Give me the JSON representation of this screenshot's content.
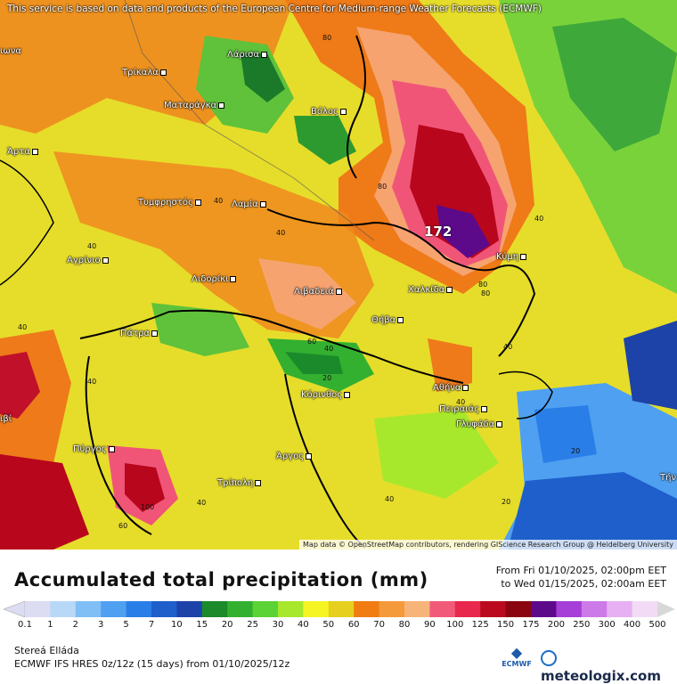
{
  "map": {
    "notice": "This service is based on data and products of the European Centre for Medium-range Weather Forecasts (ECMWF)",
    "attribution": "Map data © OpenStreetMap contributors, rendering GIScience Research Group @ Heidelberg University",
    "max_value": "172",
    "cities": [
      {
        "name": "ιωνα"
      },
      {
        "name": "Τρίκαλα"
      },
      {
        "name": "Λάρισα"
      },
      {
        "name": "Ματαράγκα"
      },
      {
        "name": "Βόλος"
      },
      {
        "name": "Άρτα"
      },
      {
        "name": "Τυμφρηστός"
      },
      {
        "name": "Λαμία"
      },
      {
        "name": "Αγρίνιο"
      },
      {
        "name": "Λιδορίκι"
      },
      {
        "name": "Λιβαδειά"
      },
      {
        "name": "Χαλκίδα"
      },
      {
        "name": "Κύμη"
      },
      {
        "name": "Θήβα"
      },
      {
        "name": "Πάτρα"
      },
      {
        "name": "Κόρινθος"
      },
      {
        "name": "Αθήνα"
      },
      {
        "name": "Πειραιάς"
      },
      {
        "name": "Γλυφάδα"
      },
      {
        "name": "Πύργος"
      },
      {
        "name": "Άργος"
      },
      {
        "name": "Τρίπολη"
      },
      {
        "name": "Τήν"
      },
      {
        "name": "ιβί"
      }
    ],
    "contours": [
      "80",
      "40",
      "40",
      "40",
      "80",
      "40",
      "80",
      "40",
      "40",
      "60",
      "40",
      "40",
      "20",
      "40",
      "20",
      "20",
      "100",
      "60",
      "40",
      "80",
      "40"
    ]
  },
  "footer": {
    "title": "Accumulated total precipitation (mm)",
    "period_from": "From Fri 01/10/2025, 02:00pm EET",
    "period_to": "to Wed 01/15/2025, 02:00am EET",
    "region": "Stereá Elláda",
    "model": "ECMWF IFS HRES 0z/12z (15 days) from 01/10/2025/12z",
    "ecmwf_logo": "ECMWF",
    "brand": "meteologix.com"
  },
  "legend": {
    "labels": [
      "0.1",
      "1",
      "2",
      "3",
      "5",
      "7",
      "10",
      "15",
      "20",
      "25",
      "30",
      "40",
      "50",
      "60",
      "70",
      "80",
      "90",
      "100",
      "125",
      "150",
      "175",
      "200",
      "250",
      "300",
      "400",
      "500"
    ],
    "colors": [
      "#dcdcf2",
      "#b8d8f8",
      "#7fbff5",
      "#4fa0f0",
      "#2a7ee8",
      "#1e5fcc",
      "#1d42a8",
      "#1a8a2a",
      "#34b030",
      "#5bd236",
      "#a8e82c",
      "#f5f523",
      "#e6cf1f",
      "#f07c12",
      "#f59a3a",
      "#f7b479",
      "#f25a7a",
      "#e8284d",
      "#bb0a1e",
      "#8a0510",
      "#5c0a8a",
      "#a53fd8",
      "#cc7ae8",
      "#e6b0f2",
      "#f2dcf5",
      "#d8d8d8"
    ]
  }
}
